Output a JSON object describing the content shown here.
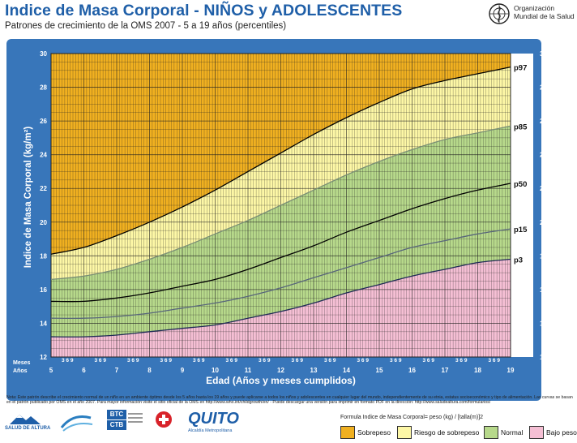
{
  "header": {
    "title": "Indice de Masa Corporal - NIÑOS y  ADOLESCENTES",
    "subtitle": "Patrones de crecimiento de la OMS 2007 - 5 a 19 años (percentiles)",
    "who_line1": "Organización",
    "who_line2": "Mundial de la Salud"
  },
  "chart_data": {
    "type": "line",
    "xlabel": "Edad (Años y meses cumplidos)",
    "ylabel": "Indice de Masa Corporal (kg/m²)",
    "xlim": [
      5,
      19
    ],
    "ylim": [
      12,
      30
    ],
    "x_ticks": [
      "5",
      "6",
      "7",
      "8",
      "9",
      "10",
      "11",
      "12",
      "13",
      "14",
      "15",
      "16",
      "17",
      "18",
      "19"
    ],
    "y_ticks": [
      "12",
      "14",
      "16",
      "18",
      "20",
      "22",
      "24",
      "26",
      "28",
      "30"
    ],
    "month_ticks": "3 6 9",
    "row_label_months": "Meses",
    "row_label_years": "Años",
    "x": [
      5,
      6,
      7,
      8,
      9,
      10,
      11,
      12,
      13,
      14,
      15,
      16,
      17,
      18,
      19
    ],
    "series": [
      {
        "name": "p97",
        "values": [
          18.1,
          18.5,
          19.2,
          20.0,
          20.9,
          21.9,
          23.0,
          24.1,
          25.2,
          26.2,
          27.1,
          27.9,
          28.4,
          28.8,
          29.2
        ]
      },
      {
        "name": "p85",
        "values": [
          16.6,
          16.8,
          17.2,
          17.8,
          18.5,
          19.3,
          20.1,
          21.0,
          21.9,
          22.8,
          23.6,
          24.3,
          24.9,
          25.3,
          25.7
        ]
      },
      {
        "name": "p50",
        "values": [
          15.3,
          15.3,
          15.5,
          15.8,
          16.2,
          16.6,
          17.2,
          17.9,
          18.6,
          19.4,
          20.1,
          20.8,
          21.4,
          21.9,
          22.3
        ]
      },
      {
        "name": "p15",
        "values": [
          14.3,
          14.3,
          14.4,
          14.6,
          14.9,
          15.2,
          15.6,
          16.1,
          16.7,
          17.3,
          17.9,
          18.5,
          18.9,
          19.3,
          19.6
        ]
      },
      {
        "name": "p3",
        "values": [
          13.2,
          13.2,
          13.3,
          13.5,
          13.7,
          13.9,
          14.3,
          14.7,
          15.2,
          15.8,
          16.3,
          16.8,
          17.2,
          17.6,
          17.8
        ]
      }
    ],
    "zone_colors": {
      "sobrepeso": "#f0b020",
      "riesgo": "#fdf7a6",
      "normal": "#b7d98b",
      "bajo": "#f5bfd4"
    },
    "line_colors": {
      "p97": "#000000",
      "p85": "#7a8f74",
      "p50": "#000000",
      "p15": "#58667a",
      "p3": "#1f2a55"
    },
    "grid": true,
    "legend": "bottom-right"
  },
  "notes": "Nota: Este patrón describe el crecimiento normal de un niño en un ambiente óptimo desde los 5 años hasta los 19 años y puede aplicarse a todos los niños y adolescentes en cualquier lugar del mundo, independientemente de su etnia, estatus socioeconómico y tipo de alimentación. Las curvas se basan en el patrón publicado por OMS en el año 2007. Para mayor información visite el sitio oficial de la OMS en http://www.who.int/childgrowth/en/ - Puede descargar una versión para imprimir en formato PDF en la dirección: http://www.saludealtura.com/formularios/",
  "logos": {
    "salud_de_altura": "SALUD DE ALTURA",
    "btc": "BTC",
    "ctb": "CTB",
    "quito": "QUITO",
    "quito_sub": "Alcaldía Metropolitana"
  },
  "formula": "Formula Indice de Masa Corporal= peso (kg) / [talla(m)]2",
  "legend_items": [
    {
      "label": "Sobrepeso",
      "color": "#f0b020"
    },
    {
      "label": "Riesgo de sobrepeso",
      "color": "#fdf7a6"
    },
    {
      "label": "Normal",
      "color": "#b7d98b"
    },
    {
      "label": "Bajo peso",
      "color": "#f5bfd4"
    }
  ]
}
